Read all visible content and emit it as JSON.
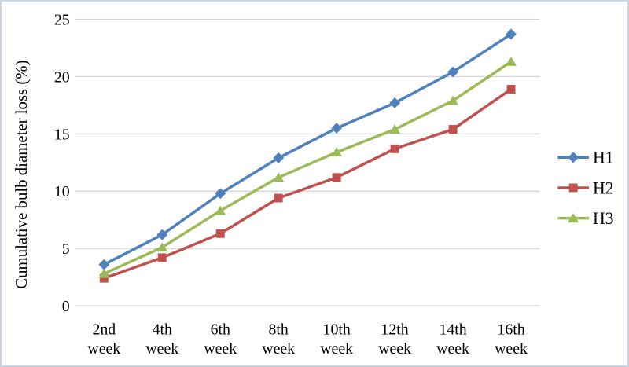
{
  "chart_data": {
    "type": "line",
    "title": "",
    "xlabel": "",
    "ylabel": "Cumulative bulb diameter loss (%)",
    "ylim": [
      0,
      25
    ],
    "yticks": [
      0,
      5,
      10,
      15,
      20,
      25
    ],
    "grid": "horizontal",
    "legend_position": "right",
    "categories": [
      [
        "2nd",
        "week"
      ],
      [
        "4th",
        "week"
      ],
      [
        "6th",
        "week"
      ],
      [
        "8th",
        "week"
      ],
      [
        "10th",
        "week"
      ],
      [
        "12th",
        "week"
      ],
      [
        "14th",
        "week"
      ],
      [
        "16th",
        "week"
      ]
    ],
    "series": [
      {
        "name": "H1",
        "marker": "diamond",
        "color": "#4F81BD",
        "values": [
          3.6,
          6.2,
          9.8,
          12.9,
          15.5,
          17.7,
          20.4,
          23.7
        ]
      },
      {
        "name": "H2",
        "marker": "square",
        "color": "#C0504D",
        "values": [
          2.4,
          4.2,
          6.3,
          9.4,
          11.2,
          13.7,
          15.4,
          18.9
        ]
      },
      {
        "name": "H3",
        "marker": "triangle",
        "color": "#9BBB59",
        "values": [
          2.8,
          5.1,
          8.3,
          11.2,
          13.4,
          15.4,
          17.9,
          21.3
        ]
      }
    ]
  },
  "colors": {
    "gridline": "#D6D6D6",
    "frame_border": "#CCD5E3",
    "background": "#FFFFFF",
    "text": "#000000"
  }
}
